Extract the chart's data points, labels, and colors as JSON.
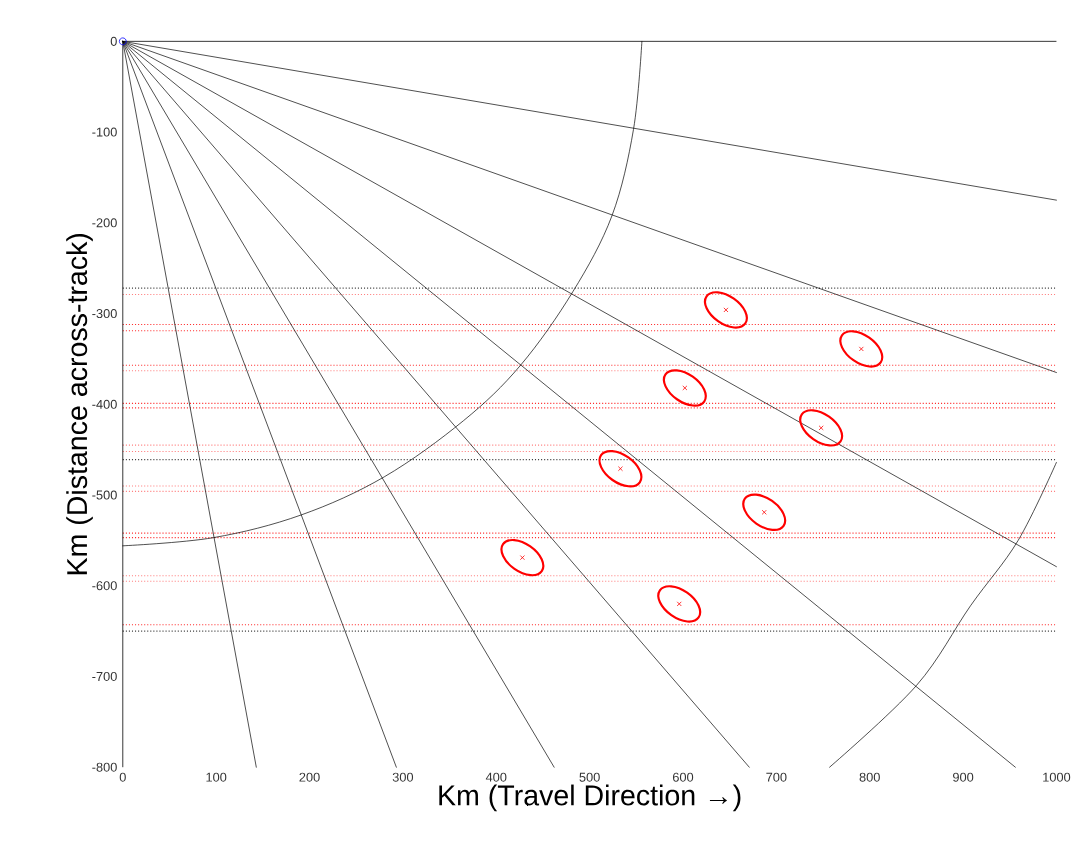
{
  "chart_data": {
    "type": "line",
    "xlabel": "Km (Travel Direction →)",
    "ylabel": "Km (Distance across-track)",
    "xlim": [
      0,
      1000
    ],
    "ylim": [
      -800,
      0
    ],
    "xticks": [
      0,
      100,
      200,
      300,
      400,
      500,
      600,
      700,
      800,
      900,
      1000
    ],
    "yticks": [
      -800,
      -700,
      -600,
      -500,
      -400,
      -300,
      -200,
      -100,
      0
    ],
    "ref_lines": [
      {
        "axis": "y",
        "value": -272,
        "color": "#404040",
        "line_style": "dotted"
      },
      {
        "axis": "y",
        "value": -279,
        "color": "#ff8080",
        "line_style": "dotted"
      },
      {
        "axis": "y",
        "value": -312,
        "color": "#ff3030",
        "line_style": "dotted"
      },
      {
        "axis": "y",
        "value": -319,
        "color": "#ff3030",
        "line_style": "dotted"
      },
      {
        "axis": "y",
        "value": -357,
        "color": "#ff3030",
        "line_style": "dotted"
      },
      {
        "axis": "y",
        "value": -363,
        "color": "#ff8080",
        "line_style": "dotted"
      },
      {
        "axis": "y",
        "value": -399,
        "color": "#ff3030",
        "line_style": "dotted"
      },
      {
        "axis": "y",
        "value": -404,
        "color": "#ff3030",
        "line_style": "dotted"
      },
      {
        "axis": "y",
        "value": -445,
        "color": "#ff8080",
        "line_style": "dotted"
      },
      {
        "axis": "y",
        "value": -452,
        "color": "#ff8080",
        "line_style": "dotted"
      },
      {
        "axis": "y",
        "value": -461,
        "color": "#404040",
        "line_style": "dotted"
      },
      {
        "axis": "y",
        "value": -490,
        "color": "#ff8080",
        "line_style": "dotted"
      },
      {
        "axis": "y",
        "value": -496,
        "color": "#ff8080",
        "line_style": "dotted"
      },
      {
        "axis": "y",
        "value": -542,
        "color": "#ff3030",
        "line_style": "dotted"
      },
      {
        "axis": "y",
        "value": -547,
        "color": "#ff3030",
        "line_style": "dotted"
      },
      {
        "axis": "y",
        "value": -589,
        "color": "#ff8080",
        "line_style": "dotted"
      },
      {
        "axis": "y",
        "value": -595,
        "color": "#ff8080",
        "line_style": "dotted"
      },
      {
        "axis": "y",
        "value": -643,
        "color": "#ff3030",
        "line_style": "dotted"
      },
      {
        "axis": "y",
        "value": -650,
        "color": "#404040",
        "line_style": "dotted"
      }
    ],
    "series": [
      {
        "type": "line",
        "color": "#000000",
        "marker": "none",
        "line_style": "solid",
        "x": [
          0,
          1000
        ],
        "values": [
          0,
          -175
        ]
      },
      {
        "type": "line",
        "color": "#000000",
        "marker": "none",
        "line_style": "solid",
        "x": [
          0,
          1000
        ],
        "values": [
          0,
          -365
        ]
      },
      {
        "type": "line",
        "color": "#000000",
        "marker": "none",
        "line_style": "solid",
        "x": [
          0,
          1000
        ],
        "values": [
          0,
          -579
        ]
      },
      {
        "type": "line",
        "color": "#000000",
        "marker": "none",
        "line_style": "solid",
        "x": [
          0,
          956
        ],
        "values": [
          0,
          -800
        ]
      },
      {
        "type": "line",
        "color": "#000000",
        "marker": "none",
        "line_style": "solid",
        "x": [
          0,
          671
        ],
        "values": [
          0,
          -800
        ]
      },
      {
        "type": "line",
        "color": "#000000",
        "marker": "none",
        "line_style": "solid",
        "x": [
          0,
          462
        ],
        "values": [
          0,
          -800
        ]
      },
      {
        "type": "line",
        "color": "#000000",
        "marker": "none",
        "line_style": "solid",
        "x": [
          0,
          293
        ],
        "values": [
          0,
          -800
        ]
      },
      {
        "type": "line",
        "color": "#000000",
        "marker": "none",
        "line_style": "solid",
        "x": [
          0,
          143
        ],
        "values": [
          0,
          -800
        ]
      },
      {
        "type": "line",
        "color": "#000000",
        "marker": "none",
        "line_style": "solid",
        "x": [
          556,
          547,
          524,
          482,
          426,
          365,
          280,
          191,
          97,
          0
        ],
        "values": [
          0,
          -97,
          -192,
          -276,
          -357,
          -418,
          -480,
          -522,
          -547,
          -556
        ]
      },
      {
        "type": "line",
        "color": "#000000",
        "marker": "none",
        "line_style": "solid",
        "x": [
          1000,
          959,
          908,
          850,
          757
        ],
        "values": [
          -464,
          -550,
          -622,
          -710,
          -800
        ]
      },
      {
        "type": "scatter",
        "color": "#ff0000",
        "marker": "cross",
        "x": [
          646,
          791,
          602,
          748,
          533,
          687,
          428,
          596
        ],
        "values": [
          -296,
          -339,
          -382,
          -426,
          -471,
          -519,
          -569,
          -620
        ]
      },
      {
        "type": "scatter",
        "color": "#0000ff",
        "marker": "circle",
        "x": [
          0
        ],
        "values": [
          0
        ]
      }
    ]
  }
}
